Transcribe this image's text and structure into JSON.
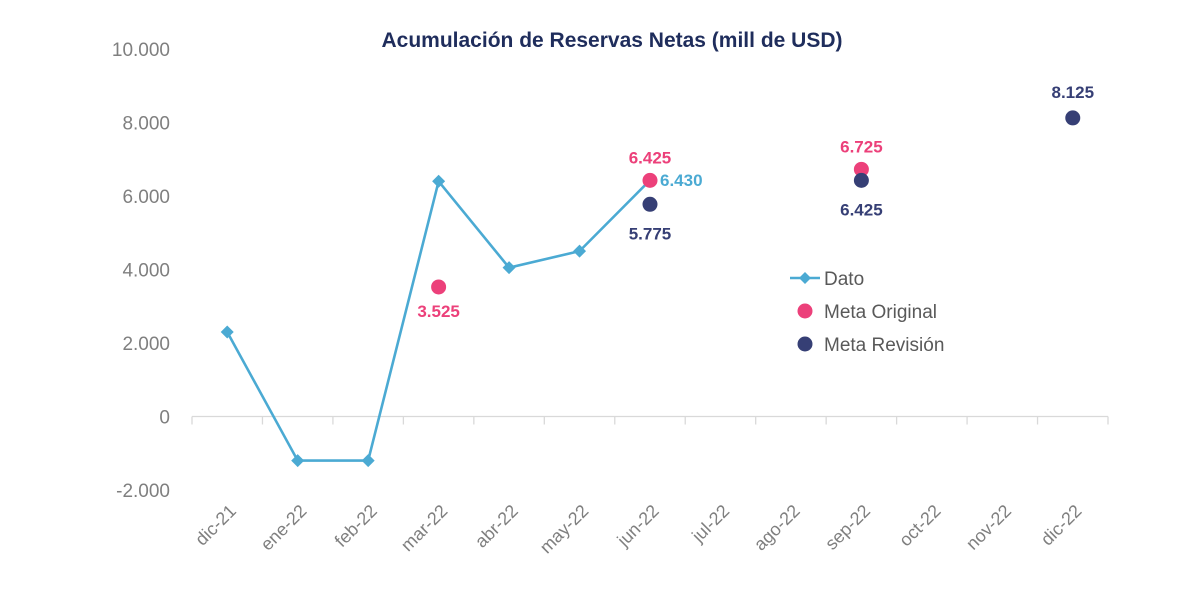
{
  "chart_data": {
    "type": "line",
    "title": "Acumulación de Reservas Netas (mill de USD)",
    "categories": [
      "dic-21",
      "ene-22",
      "feb-22",
      "mar-22",
      "abr-22",
      "may-22",
      "jun-22",
      "jul-22",
      "ago-22",
      "sep-22",
      "oct-22",
      "nov-22",
      "dic-22"
    ],
    "y_ticks": [
      "10.000",
      "8.000",
      "6.000",
      "4.000",
      "2.000",
      "0",
      "-2.000"
    ],
    "ylim": [
      -2000,
      10000
    ],
    "grid": false,
    "legend_position": "right",
    "series": [
      {
        "name": "Dato",
        "kind": "line",
        "color": "#4baad3",
        "marker": "diamond",
        "values": [
          2300,
          -1200,
          -1200,
          6400,
          4050,
          4500,
          6430,
          null,
          null,
          null,
          null,
          null,
          null
        ],
        "labels": [
          {
            "index": 6,
            "text": "6.430"
          }
        ]
      },
      {
        "name": "Meta Original",
        "kind": "scatter",
        "color": "#ec407a",
        "marker": "circle",
        "values": [
          null,
          null,
          null,
          3525,
          null,
          null,
          6425,
          null,
          null,
          6725,
          null,
          null,
          null
        ],
        "labels": [
          {
            "index": 3,
            "text": "3.525"
          },
          {
            "index": 6,
            "text": "6.425"
          },
          {
            "index": 9,
            "text": "6.725"
          }
        ]
      },
      {
        "name": "Meta Revisión",
        "kind": "scatter",
        "color": "#363f75",
        "marker": "circle",
        "values": [
          null,
          null,
          null,
          null,
          null,
          null,
          5775,
          null,
          null,
          6425,
          null,
          null,
          8125
        ],
        "labels": [
          {
            "index": 6,
            "text": "5.775"
          },
          {
            "index": 9,
            "text": "6.425"
          },
          {
            "index": 12,
            "text": "8.125"
          }
        ]
      }
    ]
  }
}
